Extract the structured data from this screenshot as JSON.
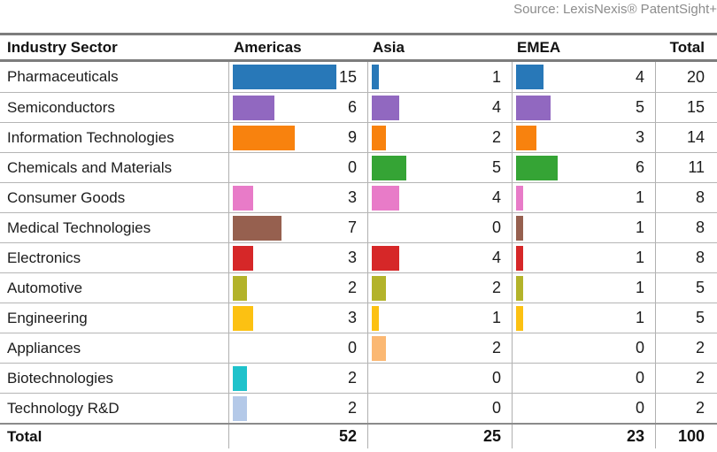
{
  "source": "Source: LexisNexis® PatentSight+",
  "table": {
    "headers": {
      "sector": "Industry Sector",
      "americas": "Americas",
      "asia": "Asia",
      "emea": "EMEA",
      "total": "Total"
    },
    "rows": [
      {
        "sector": "Pharmaceuticals",
        "americas": 15,
        "asia": 1,
        "emea": 4,
        "total": 20,
        "color": "#2878b8"
      },
      {
        "sector": "Semiconductors",
        "americas": 6,
        "asia": 4,
        "emea": 5,
        "total": 15,
        "color": "#9168c0"
      },
      {
        "sector": "Information Technologies",
        "americas": 9,
        "asia": 2,
        "emea": 3,
        "total": 14,
        "color": "#f8820e"
      },
      {
        "sector": "Chemicals and Materials",
        "americas": 0,
        "asia": 5,
        "emea": 6,
        "total": 11,
        "color": "#35a435"
      },
      {
        "sector": "Consumer Goods",
        "americas": 3,
        "asia": 4,
        "emea": 1,
        "total": 8,
        "color": "#e87bc8"
      },
      {
        "sector": "Medical Technologies",
        "americas": 7,
        "asia": 0,
        "emea": 1,
        "total": 8,
        "color": "#96604f"
      },
      {
        "sector": "Electronics",
        "americas": 3,
        "asia": 4,
        "emea": 1,
        "total": 8,
        "color": "#d62728"
      },
      {
        "sector": "Automotive",
        "americas": 2,
        "asia": 2,
        "emea": 1,
        "total": 5,
        "color": "#b3b32a"
      },
      {
        "sector": "Engineering",
        "americas": 3,
        "asia": 1,
        "emea": 1,
        "total": 5,
        "color": "#fcc112"
      },
      {
        "sector": "Appliances",
        "americas": 0,
        "asia": 2,
        "emea": 0,
        "total": 2,
        "color": "#fbb873"
      },
      {
        "sector": "Biotechnologies",
        "americas": 2,
        "asia": 0,
        "emea": 0,
        "total": 2,
        "color": "#1fc2cb"
      },
      {
        "sector": "Technology R&D",
        "americas": 2,
        "asia": 0,
        "emea": 0,
        "total": 2,
        "color": "#b4c9e8"
      }
    ],
    "total_row": {
      "label": "Total",
      "americas": 52,
      "asia": 25,
      "emea": 23,
      "total": 100
    }
  },
  "chart_data": {
    "type": "table",
    "title": "",
    "subtitle_source": "Source: LexisNexis® PatentSight+",
    "categories": [
      "Pharmaceuticals",
      "Semiconductors",
      "Information Technologies",
      "Chemicals and Materials",
      "Consumer Goods",
      "Medical Technologies",
      "Electronics",
      "Automotive",
      "Engineering",
      "Appliances",
      "Biotechnologies",
      "Technology R&D"
    ],
    "series": [
      {
        "name": "Americas",
        "values": [
          15,
          6,
          9,
          0,
          3,
          7,
          3,
          2,
          3,
          0,
          2,
          2
        ]
      },
      {
        "name": "Asia",
        "values": [
          1,
          4,
          2,
          5,
          4,
          0,
          4,
          2,
          1,
          2,
          0,
          0
        ]
      },
      {
        "name": "EMEA",
        "values": [
          4,
          5,
          3,
          6,
          1,
          1,
          1,
          1,
          1,
          0,
          0,
          0
        ]
      },
      {
        "name": "Total",
        "values": [
          20,
          15,
          14,
          11,
          8,
          8,
          8,
          5,
          5,
          2,
          2,
          2
        ]
      }
    ],
    "column_totals": {
      "Americas": 52,
      "Asia": 25,
      "EMEA": 23,
      "Total": 100
    },
    "row_colors": [
      "#2878b8",
      "#9168c0",
      "#f8820e",
      "#35a435",
      "#e87bc8",
      "#96604f",
      "#d62728",
      "#b3b32a",
      "#fcc112",
      "#fbb873",
      "#1fc2cb",
      "#b4c9e8"
    ],
    "bars": "in-cell horizontal bars, uniform scale ~7.8px per unit, max value 15"
  }
}
